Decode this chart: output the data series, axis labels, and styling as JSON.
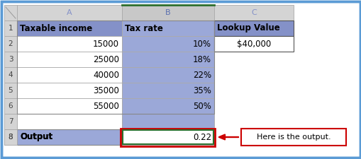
{
  "col_headers": [
    "A",
    "B",
    "C"
  ],
  "row_labels": [
    "1",
    "2",
    "3",
    "4",
    "5",
    "6",
    "7",
    "8"
  ],
  "header_row": [
    "Taxable income",
    "Tax rate",
    "Lookup Value"
  ],
  "data_rows": [
    [
      "15000",
      "10%",
      "$40,000"
    ],
    [
      "25000",
      "18%",
      ""
    ],
    [
      "40000",
      "22%",
      ""
    ],
    [
      "35000",
      "35%",
      ""
    ],
    [
      "55000",
      "50%",
      ""
    ],
    [
      "",
      "",
      ""
    ],
    [
      "Output",
      "",
      "0.22"
    ]
  ],
  "col_header_bg": "#d4d4d4",
  "col_header_b_bg": "#c8c8c8",
  "header_row_bg": "#8491c8",
  "col_b_bg": "#9ba8d8",
  "col_a_output_bg": "#9ba8d8",
  "outer_border": "#5b9bd5",
  "output_box_red": "#cc0000",
  "output_box_green": "#2d6e2d",
  "annotation_box_color": "#cc0000",
  "col_header_text_a": "#8491c8",
  "col_header_text_b": "#5a6fb0",
  "col_header_text_c": "#8491c8",
  "annotation_text": "Here is the output.",
  "figsize": [
    5.1,
    2.25
  ],
  "dpi": 100
}
